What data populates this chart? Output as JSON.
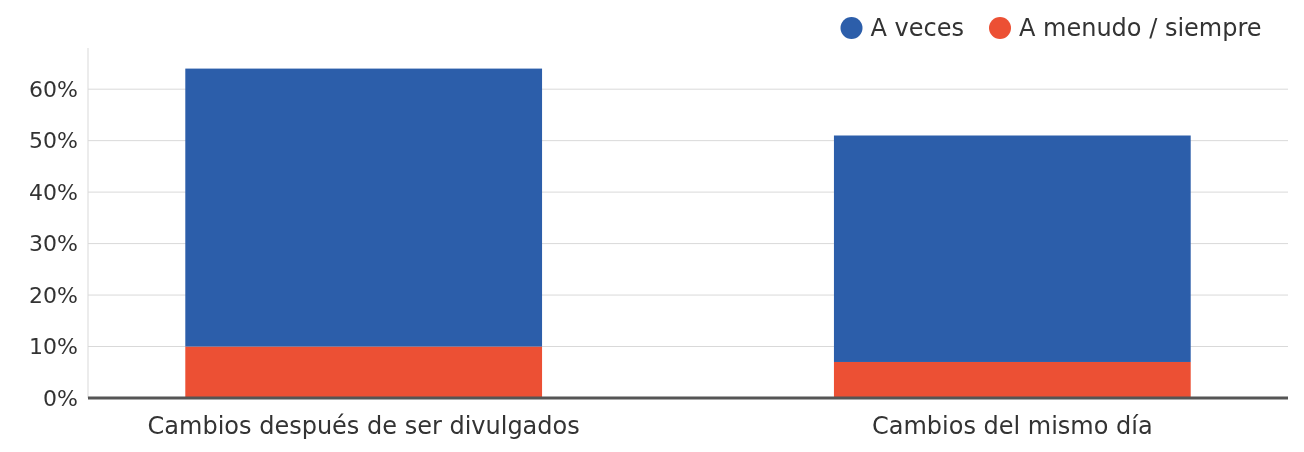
{
  "chart_data": {
    "type": "bar",
    "stacked": true,
    "categories": [
      "Cambios después de ser divulgados",
      "Cambios del mismo día"
    ],
    "series": [
      {
        "name": "A menudo / siempre",
        "color": "#ec5034",
        "values": [
          10,
          7
        ]
      },
      {
        "name": "A veces",
        "color": "#2c5eaa",
        "values": [
          54,
          44
        ]
      }
    ],
    "ylim": [
      0,
      68
    ],
    "yticks": [
      {
        "value": 0,
        "label": "0%"
      },
      {
        "value": 10,
        "label": "10%"
      },
      {
        "value": 20,
        "label": "20%"
      },
      {
        "value": 30,
        "label": "30%"
      },
      {
        "value": 40,
        "label": "40%"
      },
      {
        "value": 50,
        "label": "50%"
      },
      {
        "value": 60,
        "label": "60%"
      }
    ],
    "grid": "y",
    "legend": "top right"
  }
}
